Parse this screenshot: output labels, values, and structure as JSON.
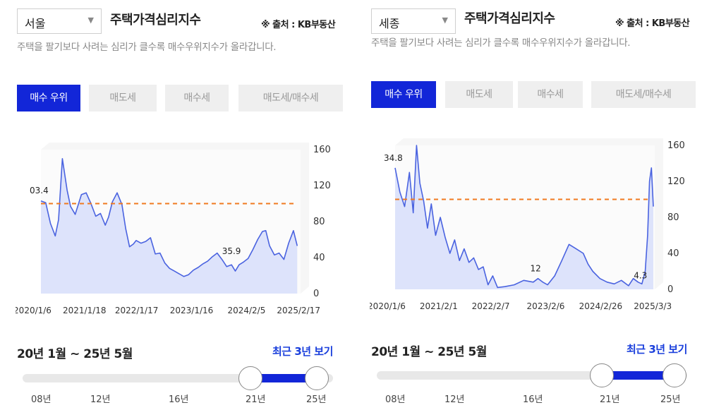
{
  "panels": [
    {
      "region": "서울",
      "title": "주택가격심리지수",
      "source": "※ 출처 : KB부동산",
      "description": "주택을 팔기보다 사려는 심리가 클수록 매수우위지수가 올라갑니다.",
      "tabs": [
        "매수 우위",
        "매도세",
        "매수세",
        "매도세/매수세"
      ],
      "active_tab": 0,
      "range_text": "20년 1월 ~ 25년 5월",
      "recent_label": "최근 3년 보기",
      "slider_labels": [
        "08년",
        "12년",
        "16년",
        "21년",
        "25년"
      ]
    },
    {
      "region": "세종",
      "title": "주택가격심리지수",
      "source": "※ 출처 : KB부동산",
      "description": "주택을 팔기보다 사려는 심리가 클수록 매수우위지수가 올라갑니다.",
      "tabs": [
        "매수 우위",
        "매도세",
        "매수세",
        "매도세/매수세"
      ],
      "active_tab": 0,
      "range_text": "20년 1월 ~ 25년 5월",
      "recent_label": "최근 3년 보기",
      "slider_labels": [
        "08년",
        "12년",
        "16년",
        "21년",
        "25년"
      ]
    }
  ],
  "colors": {
    "accent": "#1226d8",
    "line": "#4a63e0",
    "area": "#dde3fb",
    "refline": "#f07a20"
  },
  "chart_data": [
    {
      "type": "area",
      "region": "서울",
      "reference_line": 100,
      "ylim": [
        0,
        160
      ],
      "yticks": [
        0,
        40,
        80,
        120,
        160
      ],
      "xticks": [
        "2020/1/6",
        "2021/1/18",
        "2022/1/17",
        "2023/1/16",
        "2024/2/5",
        "2025/2/17"
      ],
      "annotations": [
        {
          "label": "03.4",
          "x": 2020.02,
          "y": 103.4
        },
        {
          "label": "35.9",
          "x": 2024.0,
          "y": 35.9
        }
      ],
      "x": [
        2020.0,
        2020.1,
        2020.2,
        2020.3,
        2020.37,
        2020.45,
        2020.55,
        2020.62,
        2020.72,
        2020.85,
        2020.95,
        2021.05,
        2021.15,
        2021.25,
        2021.35,
        2021.42,
        2021.5,
        2021.6,
        2021.7,
        2021.78,
        2021.86,
        2021.94,
        2022.0,
        2022.1,
        2022.2,
        2022.3,
        2022.4,
        2022.5,
        2022.6,
        2022.7,
        2022.8,
        2022.9,
        2023.0,
        2023.1,
        2023.2,
        2023.3,
        2023.4,
        2023.5,
        2023.6,
        2023.7,
        2023.8,
        2023.9,
        2024.0,
        2024.08,
        2024.16,
        2024.25,
        2024.35,
        2024.45,
        2024.55,
        2024.65,
        2024.72,
        2024.8,
        2024.9,
        2025.0,
        2025.1,
        2025.2,
        2025.3,
        2025.38
      ],
      "values": [
        103,
        101,
        78,
        64,
        82,
        150,
        115,
        97,
        88,
        110,
        112,
        100,
        86,
        89,
        76,
        85,
        102,
        112,
        99,
        72,
        52,
        55,
        59,
        56,
        58,
        62,
        44,
        45,
        34,
        28,
        25,
        22,
        19,
        21,
        26,
        29,
        33,
        36,
        41,
        45,
        38,
        30,
        32,
        25,
        32,
        35,
        39,
        49,
        60,
        69,
        70,
        53,
        43,
        45,
        38,
        56,
        70,
        53
      ]
    },
    {
      "type": "area",
      "region": "세종",
      "reference_line": 100,
      "ylim": [
        0,
        160
      ],
      "yticks": [
        0,
        40,
        80,
        120,
        160
      ],
      "xticks": [
        "2020/1/6",
        "2021/2/1",
        "2022/2/7",
        "2023/2/6",
        "2024/2/26",
        "2025/3/3"
      ],
      "annotations": [
        {
          "label": "34.8",
          "x": 2020.02,
          "y": 134.8
        },
        {
          "label": "12",
          "x": 2022.95,
          "y": 12
        },
        {
          "label": "4.3",
          "x": 2025.15,
          "y": 4.3
        }
      ],
      "x": [
        2020.0,
        2020.1,
        2020.2,
        2020.3,
        2020.38,
        2020.45,
        2020.52,
        2020.6,
        2020.68,
        2020.76,
        2020.85,
        2020.95,
        2021.05,
        2021.15,
        2021.25,
        2021.35,
        2021.45,
        2021.55,
        2021.65,
        2021.75,
        2021.85,
        2021.95,
        2022.05,
        2022.15,
        2022.3,
        2022.5,
        2022.7,
        2022.9,
        2023.0,
        2023.1,
        2023.2,
        2023.35,
        2023.5,
        2023.65,
        2023.8,
        2023.95,
        2024.05,
        2024.15,
        2024.3,
        2024.45,
        2024.6,
        2024.75,
        2024.9,
        2025.0,
        2025.1,
        2025.18,
        2025.25,
        2025.3,
        2025.34,
        2025.38,
        2025.42
      ],
      "values": [
        135,
        108,
        92,
        130,
        85,
        160,
        118,
        98,
        68,
        95,
        60,
        80,
        58,
        40,
        55,
        32,
        45,
        30,
        35,
        22,
        25,
        5,
        15,
        2,
        3,
        5,
        10,
        8,
        12,
        8,
        5,
        15,
        32,
        50,
        45,
        40,
        28,
        20,
        12,
        8,
        6,
        10,
        4,
        12,
        8,
        6,
        20,
        60,
        120,
        135,
        92
      ]
    }
  ]
}
